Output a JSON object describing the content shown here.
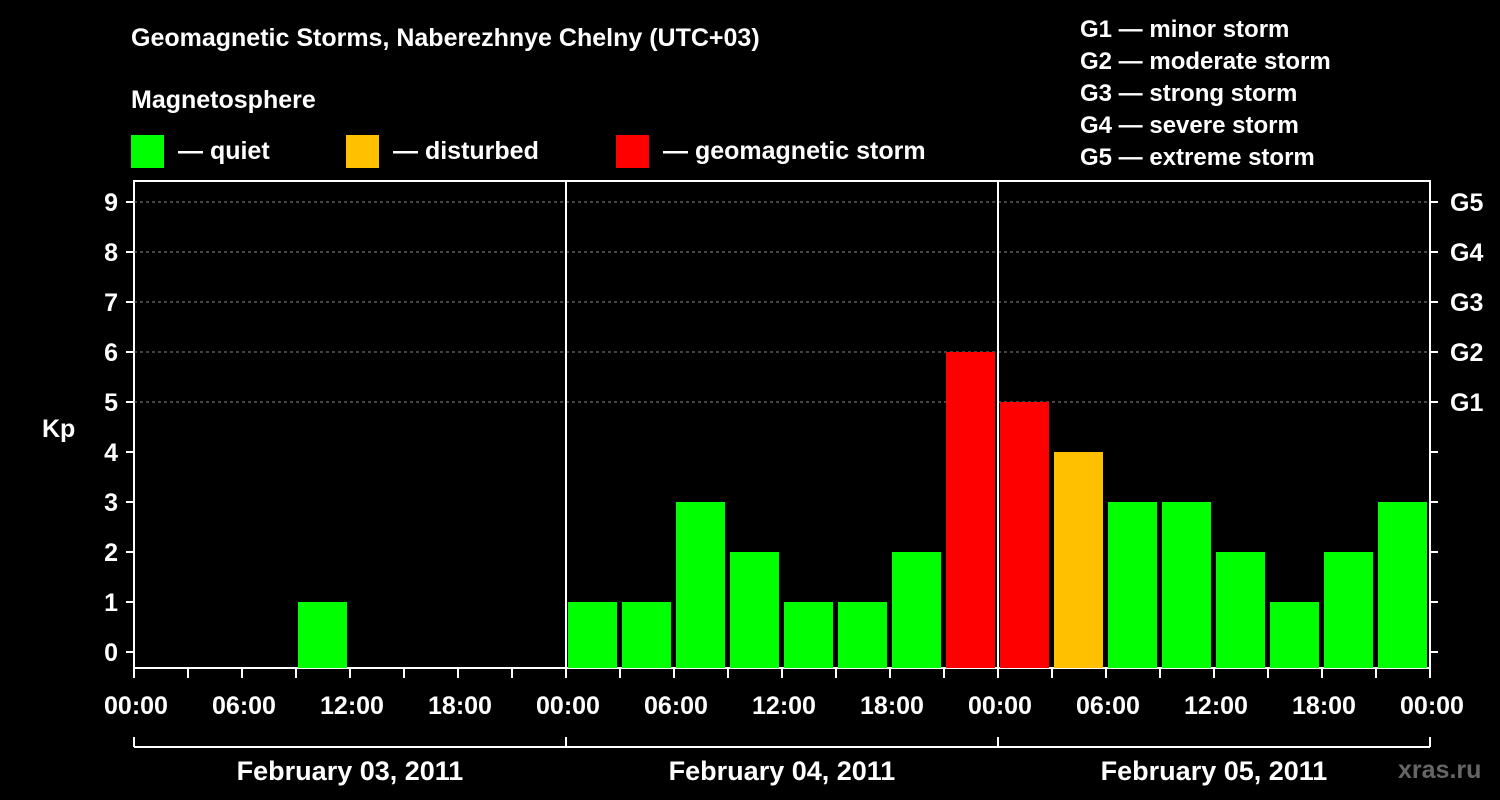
{
  "chart_data": {
    "type": "bar",
    "title": "Geomagnetic Storms, Naberezhnye Chelny (UTC+03)",
    "subtitle": "Magnetosphere",
    "ylabel": "Kp",
    "ylim": [
      0,
      9
    ],
    "yticks": [
      "0",
      "1",
      "2",
      "3",
      "4",
      "5",
      "6",
      "7",
      "8",
      "9"
    ],
    "right_axis": [
      {
        "kp": 5,
        "label": "G1"
      },
      {
        "kp": 6,
        "label": "G2"
      },
      {
        "kp": 7,
        "label": "G3"
      },
      {
        "kp": 8,
        "label": "G4"
      },
      {
        "kp": 9,
        "label": "G5"
      }
    ],
    "xticks": [
      "00:00",
      "06:00",
      "12:00",
      "18:00",
      "00:00",
      "06:00",
      "12:00",
      "18:00",
      "00:00",
      "06:00",
      "12:00",
      "18:00",
      "00:00"
    ],
    "days": [
      "February 03, 2011",
      "February 04, 2011",
      "February 05, 2011"
    ],
    "interval_hours": 3,
    "values": [
      null,
      null,
      null,
      1,
      null,
      null,
      null,
      null,
      1,
      1,
      3,
      2,
      1,
      1,
      2,
      6,
      5,
      4,
      3,
      3,
      2,
      1,
      2,
      3
    ],
    "colors": {
      "quiet": "#00ff00",
      "disturbed": "#ffc000",
      "storm": "#ff0000"
    },
    "legend": [
      {
        "key": "quiet",
        "label": "— quiet"
      },
      {
        "key": "disturbed",
        "label": "— disturbed"
      },
      {
        "key": "storm",
        "label": "— geomagnetic storm"
      }
    ],
    "scale_legend": [
      "G1 — minor storm",
      "G2 — moderate storm",
      "G3 — strong storm",
      "G4 — severe storm",
      "G5 — extreme storm"
    ]
  },
  "watermark": "xras.ru"
}
